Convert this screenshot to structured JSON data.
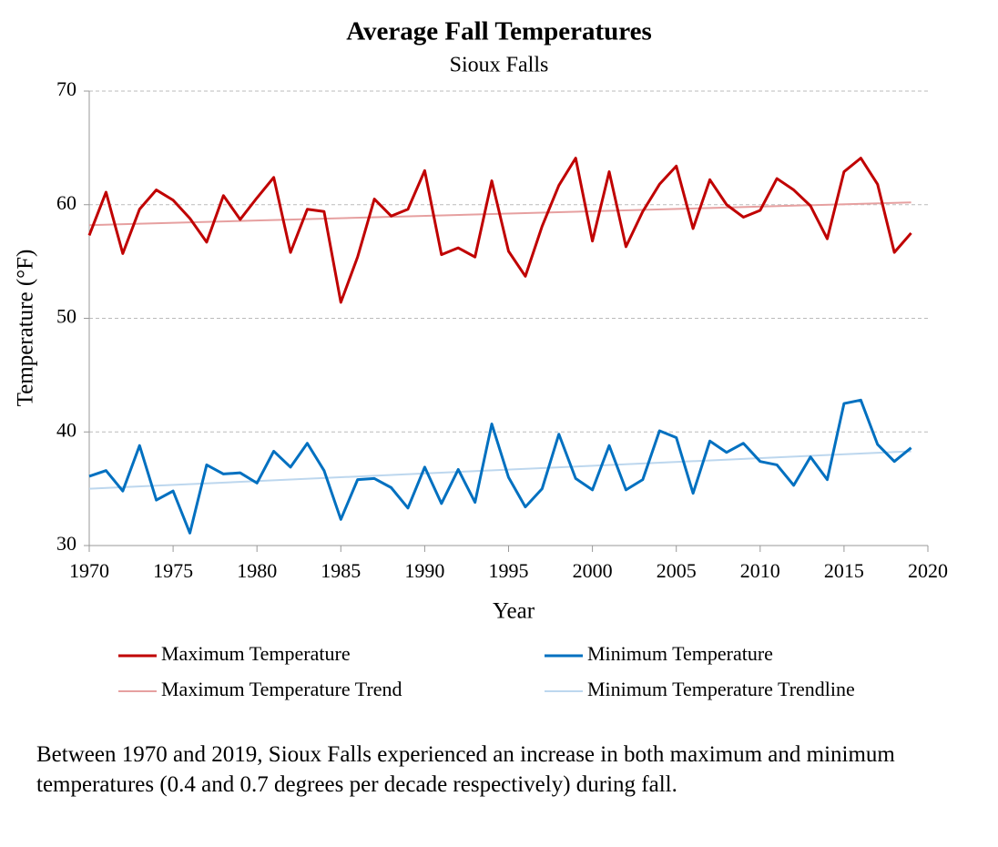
{
  "chart_data": {
    "type": "line",
    "title": "Average Fall Temperatures",
    "subtitle": "Sioux Falls",
    "xlabel": "Year",
    "ylabel": "Temperature (°F)",
    "x": [
      1970,
      1971,
      1972,
      1973,
      1974,
      1975,
      1976,
      1977,
      1978,
      1979,
      1980,
      1981,
      1982,
      1983,
      1984,
      1985,
      1986,
      1987,
      1988,
      1989,
      1990,
      1991,
      1992,
      1993,
      1994,
      1995,
      1996,
      1997,
      1998,
      1999,
      2000,
      2001,
      2002,
      2003,
      2004,
      2005,
      2006,
      2007,
      2008,
      2009,
      2010,
      2011,
      2012,
      2013,
      2014,
      2015,
      2016,
      2017,
      2018,
      2019
    ],
    "series": [
      {
        "name": "Maximum Temperature",
        "color": "#c00000",
        "width": 3,
        "values": [
          57.3,
          61.1,
          55.7,
          59.6,
          61.3,
          60.4,
          58.8,
          56.7,
          60.8,
          58.7,
          60.6,
          62.4,
          55.8,
          59.6,
          59.4,
          51.4,
          55.4,
          60.5,
          59.0,
          59.6,
          63.0,
          55.6,
          56.2,
          55.4,
          62.1,
          55.9,
          53.7,
          58.1,
          61.7,
          64.1,
          56.8,
          62.9,
          56.3,
          59.4,
          61.8,
          63.4,
          57.9,
          62.2,
          60.0,
          58.9,
          59.5,
          62.3,
          61.3,
          59.9,
          57.0,
          62.9,
          64.1,
          61.8,
          55.8,
          57.5
        ]
      },
      {
        "name": "Minimum Temperature",
        "color": "#0070c0",
        "width": 3,
        "values": [
          36.1,
          36.6,
          34.8,
          38.8,
          34.0,
          34.8,
          31.1,
          37.1,
          36.3,
          36.4,
          35.5,
          38.3,
          36.9,
          39.0,
          36.6,
          32.3,
          35.8,
          35.9,
          35.1,
          33.3,
          36.9,
          33.7,
          36.7,
          33.8,
          40.7,
          36.0,
          33.4,
          35.0,
          39.8,
          35.9,
          34.9,
          38.8,
          34.9,
          35.8,
          40.1,
          39.5,
          34.6,
          39.2,
          38.2,
          39.0,
          37.4,
          37.1,
          35.3,
          37.8,
          35.8,
          42.5,
          42.8,
          38.9,
          37.4,
          38.6
        ]
      },
      {
        "name": "Maximum Temperature Trend",
        "color": "#e6a0a0",
        "width": 2,
        "x": [
          1970,
          2019
        ],
        "values": [
          58.2,
          60.2
        ]
      },
      {
        "name": "Minimum Temperature Trendline",
        "color": "#bdd7ee",
        "width": 2,
        "x": [
          1970,
          2019
        ],
        "values": [
          35.0,
          38.3
        ]
      }
    ],
    "xlim": [
      1970,
      2020
    ],
    "xticks": [
      1970,
      1975,
      1980,
      1985,
      1990,
      1995,
      2000,
      2005,
      2010,
      2015,
      2020
    ],
    "ylim": [
      30,
      70
    ],
    "yticks": [
      30,
      40,
      50,
      60,
      70
    ],
    "grid": true,
    "legend": "bottom",
    "caption": "Between 1970 and 2019, Sioux Falls experienced an increase in both maximum and minimum temperatures (0.4 and 0.7 degrees per decade respectively) during fall."
  }
}
